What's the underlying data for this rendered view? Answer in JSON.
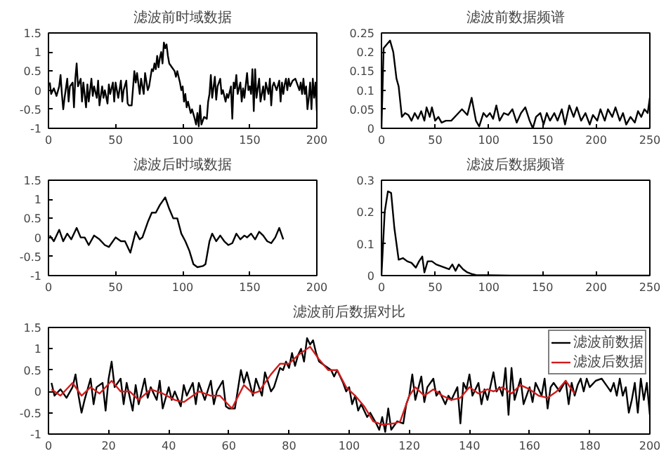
{
  "chart_data": [
    {
      "type": "line",
      "title": "滤波前时域数据",
      "xlim": [
        0,
        200
      ],
      "ylim": [
        -1,
        1.5
      ],
      "xticks": [
        0,
        50,
        100,
        150,
        200
      ],
      "yticks": [
        -1,
        -0.5,
        0,
        0.5,
        1,
        1.5
      ],
      "x": [
        1,
        2,
        4,
        6,
        8,
        9,
        10,
        11,
        12,
        14,
        15,
        16,
        18,
        19,
        20,
        21,
        22,
        24,
        25,
        26,
        28,
        29,
        30,
        32,
        33,
        34,
        36,
        37,
        38,
        40,
        41,
        42,
        44,
        45,
        46,
        48,
        49,
        50,
        52,
        54,
        55,
        56,
        58,
        59,
        60,
        62,
        64,
        65,
        66,
        68,
        69,
        70,
        71,
        72,
        74,
        75,
        77,
        78,
        79,
        80,
        81,
        82,
        83,
        84,
        85,
        86,
        87,
        88,
        89,
        90,
        92,
        94,
        95,
        96,
        98,
        99,
        100,
        101,
        102,
        103,
        104,
        106,
        107,
        109,
        110,
        111,
        112,
        113,
        114,
        116,
        118,
        119,
        120,
        121,
        122,
        124,
        125,
        126,
        128,
        129,
        130,
        132,
        133,
        134,
        136,
        137,
        138,
        139,
        140,
        141,
        143,
        144,
        145,
        146,
        148,
        149,
        150,
        151,
        152,
        153,
        154,
        155,
        157,
        158,
        160,
        161,
        162,
        164,
        165,
        166,
        167,
        168,
        170,
        172,
        173,
        174,
        175,
        176,
        177,
        178,
        179,
        180,
        182,
        184,
        186,
        187,
        188,
        189,
        190,
        191,
        192,
        193,
        194,
        195,
        196,
        197,
        198,
        199,
        200
      ],
      "series": [
        {
          "color": "#000000",
          "values": [
            0.2,
            -0.1,
            0.05,
            -0.15,
            0.1,
            0.4,
            -0.1,
            -0.5,
            -0.2,
            0.3,
            -0.3,
            0.1,
            0.2,
            -0.45,
            0.3,
            0.7,
            0.1,
            0.3,
            -0.3,
            0.2,
            -0.45,
            0.15,
            -0.3,
            0.3,
            -0.15,
            0.1,
            -0.2,
            0.25,
            -0.4,
            0.1,
            -0.2,
            0.0,
            -0.35,
            0.15,
            -0.1,
            0.2,
            -0.3,
            0.2,
            -0.2,
            0.25,
            -0.3,
            0.0,
            0.25,
            -0.35,
            -0.4,
            -0.4,
            0.5,
            0.2,
            0.45,
            -0.1,
            0.3,
            0.1,
            -0.1,
            0.45,
            0.0,
            0.1,
            0.55,
            0.5,
            0.7,
            0.55,
            0.9,
            0.6,
            0.85,
            1.0,
            0.7,
            1.25,
            1.1,
            1.2,
            0.9,
            0.7,
            0.6,
            0.5,
            0.35,
            0.5,
            0.2,
            0.0,
            0.1,
            -0.3,
            -0.1,
            -0.45,
            -0.3,
            -0.6,
            -0.5,
            -0.75,
            -0.9,
            -0.6,
            -0.95,
            -0.4,
            -0.9,
            -0.7,
            -0.75,
            -0.3,
            -0.1,
            0.4,
            -0.2,
            0.35,
            -0.25,
            0.1,
            0.3,
            -0.1,
            0.0,
            -0.3,
            -0.1,
            -0.2,
            0.1,
            -0.75,
            0.2,
            0.05,
            0.4,
            -0.1,
            0.2,
            -0.3,
            0.05,
            -0.2,
            0.45,
            0.0,
            0.1,
            -0.1,
            0.55,
            -0.55,
            0.55,
            -0.2,
            0.3,
            -0.3,
            0.1,
            -0.25,
            0.2,
            -0.1,
            0.3,
            -0.4,
            0.1,
            0.2,
            0.0,
            0.25,
            -0.3,
            0.2,
            -0.1,
            0.15,
            0.3,
            0.0,
            0.3,
            0.1,
            0.25,
            0.3,
            0.1,
            0.0,
            0.2,
            -0.1,
            0.3,
            -0.1,
            0.1,
            -0.5,
            -0.2,
            0.2,
            -0.5,
            0.3,
            -0.2,
            0.2,
            -0.55
          ]
        }
      ]
    },
    {
      "type": "line",
      "title": "滤波前数据频谱",
      "xlim": [
        0,
        250
      ],
      "ylim": [
        0,
        0.25
      ],
      "xticks": [
        0,
        50,
        100,
        150,
        200,
        250
      ],
      "yticks": [
        0,
        0.05,
        0.1,
        0.15,
        0.2,
        0.25
      ],
      "x": [
        0,
        2,
        5,
        8,
        11,
        14,
        16,
        19,
        22,
        25,
        28,
        31,
        34,
        37,
        40,
        42,
        45,
        47,
        50,
        53,
        56,
        60,
        65,
        70,
        75,
        80,
        84,
        88,
        91,
        95,
        98,
        101,
        104,
        107,
        110,
        114,
        118,
        122,
        126,
        130,
        134,
        138,
        141,
        144,
        148,
        151,
        154,
        157,
        161,
        164,
        168,
        171,
        175,
        179,
        182,
        186,
        190,
        194,
        197,
        201,
        204,
        208,
        211,
        215,
        218,
        222,
        225,
        228,
        232,
        236,
        239,
        242,
        245,
        248,
        250
      ],
      "series": [
        {
          "color": "#000000",
          "values": [
            0,
            0.21,
            0.22,
            0.23,
            0.2,
            0.13,
            0.11,
            0.03,
            0.04,
            0.035,
            0.02,
            0.04,
            0.025,
            0.045,
            0.02,
            0.055,
            0.03,
            0.055,
            0.02,
            0.03,
            0.015,
            0.02,
            0.02,
            0.035,
            0.05,
            0.035,
            0.08,
            0.02,
            0.005,
            0.04,
            0.03,
            0.04,
            0.025,
            0.06,
            0.02,
            0.04,
            0.035,
            0.05,
            0.015,
            0.04,
            0.055,
            0.02,
            0.0,
            0.03,
            0.04,
            0.01,
            0.04,
            0.02,
            0.04,
            0.02,
            0.05,
            0.01,
            0.06,
            0.03,
            0.055,
            0.02,
            0.04,
            0.01,
            0.035,
            0.02,
            0.05,
            0.02,
            0.05,
            0.03,
            0.055,
            0.02,
            0.04,
            0.01,
            0.03,
            0.015,
            0.045,
            0.03,
            0.05,
            0.04,
            0.08
          ]
        }
      ]
    },
    {
      "type": "line",
      "title": "滤波后时域数据",
      "xlim": [
        0,
        200
      ],
      "ylim": [
        -1,
        1.5
      ],
      "xticks": [
        0,
        50,
        100,
        150,
        200
      ],
      "yticks": [
        -1,
        -0.5,
        0,
        0.5,
        1,
        1.5
      ],
      "x": [
        1,
        4,
        8,
        11,
        14,
        17,
        21,
        24,
        27,
        30,
        34,
        38,
        42,
        45,
        50,
        54,
        57,
        61,
        65,
        68,
        70,
        74,
        77,
        80,
        83,
        87,
        90,
        93,
        96,
        99,
        102,
        105,
        108,
        111,
        115,
        117,
        120,
        122,
        125,
        128,
        131,
        134,
        137,
        140,
        143,
        146,
        148,
        151,
        154,
        157,
        160,
        163,
        166,
        169,
        172,
        175
      ],
      "series": [
        {
          "color": "#000000",
          "values": [
            0.05,
            -0.1,
            0.2,
            -0.1,
            0.1,
            -0.05,
            0.25,
            0.0,
            0.0,
            -0.2,
            0.05,
            -0.05,
            -0.2,
            -0.25,
            0.0,
            -0.1,
            -0.1,
            -0.4,
            0.15,
            -0.05,
            0.0,
            0.4,
            0.65,
            0.65,
            0.85,
            1.05,
            0.75,
            0.5,
            0.5,
            0.1,
            -0.1,
            -0.35,
            -0.7,
            -0.78,
            -0.75,
            -0.7,
            -0.1,
            0.1,
            -0.1,
            0.05,
            -0.1,
            -0.2,
            -0.15,
            0.1,
            -0.05,
            0.05,
            0.0,
            0.1,
            -0.05,
            0.15,
            0.05,
            -0.1,
            -0.15,
            0.0,
            0.25,
            -0.05
          ]
        }
      ]
    },
    {
      "type": "line",
      "title": "滤波后数据频谱",
      "xlim": [
        0,
        250
      ],
      "ylim": [
        0,
        0.3
      ],
      "xticks": [
        0,
        50,
        100,
        150,
        200,
        250
      ],
      "yticks": [
        0,
        0.1,
        0.2,
        0.3
      ],
      "x": [
        0,
        3,
        6,
        9,
        12,
        16,
        20,
        24,
        28,
        32,
        35,
        38,
        40,
        43,
        47,
        51,
        55,
        59,
        63,
        66,
        69,
        72,
        76,
        80,
        84,
        88,
        95,
        100,
        120,
        250
      ],
      "series": [
        {
          "color": "#000000",
          "values": [
            0,
            0.2,
            0.265,
            0.26,
            0.15,
            0.05,
            0.055,
            0.045,
            0.04,
            0.025,
            0.045,
            0.06,
            0.01,
            0.045,
            0.045,
            0.035,
            0.03,
            0.025,
            0.02,
            0.035,
            0.015,
            0.035,
            0.02,
            0.01,
            0.005,
            0.002,
            0.001,
            0.001,
            0.0,
            0.0
          ]
        }
      ]
    },
    {
      "type": "line",
      "title": "滤波前后数据对比",
      "xlim": [
        0,
        200
      ],
      "ylim": [
        -1,
        1.5
      ],
      "xticks": [
        0,
        20,
        40,
        60,
        80,
        100,
        120,
        140,
        160,
        180,
        200
      ],
      "yticks": [
        -1,
        -0.5,
        0,
        0.5,
        1,
        1.5
      ],
      "legend": "top right",
      "series": [
        {
          "name": "滤波前数据",
          "color": "#000000",
          "x": [
            1,
            2,
            4,
            6,
            8,
            9,
            10,
            11,
            12,
            14,
            15,
            16,
            18,
            19,
            20,
            21,
            22,
            24,
            25,
            26,
            28,
            29,
            30,
            32,
            33,
            34,
            36,
            37,
            38,
            40,
            41,
            42,
            44,
            45,
            46,
            48,
            49,
            50,
            52,
            54,
            55,
            56,
            58,
            59,
            60,
            62,
            64,
            65,
            66,
            68,
            69,
            70,
            71,
            72,
            74,
            75,
            77,
            78,
            79,
            80,
            81,
            82,
            83,
            84,
            85,
            86,
            87,
            88,
            89,
            90,
            92,
            94,
            95,
            96,
            98,
            99,
            100,
            101,
            102,
            103,
            104,
            106,
            107,
            109,
            110,
            111,
            112,
            113,
            114,
            116,
            118,
            119,
            120,
            121,
            122,
            124,
            125,
            126,
            128,
            129,
            130,
            132,
            133,
            134,
            136,
            137,
            138,
            139,
            140,
            141,
            143,
            144,
            145,
            146,
            148,
            149,
            150,
            151,
            152,
            153,
            154,
            155,
            157,
            158,
            160,
            161,
            162,
            164,
            165,
            166,
            167,
            168,
            170,
            172,
            173,
            174,
            175,
            176,
            177,
            178,
            179,
            180,
            182,
            184,
            186,
            187,
            188,
            189,
            190,
            191,
            192,
            193,
            194,
            195,
            196,
            197,
            198,
            199,
            200
          ],
          "values": [
            0.2,
            -0.1,
            0.05,
            -0.15,
            0.1,
            0.4,
            -0.1,
            -0.5,
            -0.2,
            0.3,
            -0.3,
            0.1,
            0.2,
            -0.45,
            0.3,
            0.7,
            0.1,
            0.3,
            -0.3,
            0.2,
            -0.45,
            0.15,
            -0.3,
            0.3,
            -0.15,
            0.1,
            -0.2,
            0.25,
            -0.4,
            0.1,
            -0.2,
            0.0,
            -0.35,
            0.15,
            -0.1,
            0.2,
            -0.3,
            0.2,
            -0.2,
            0.25,
            -0.3,
            0.0,
            0.25,
            -0.35,
            -0.4,
            -0.4,
            0.5,
            0.2,
            0.45,
            -0.1,
            0.3,
            0.1,
            -0.1,
            0.45,
            0.0,
            0.1,
            0.55,
            0.5,
            0.7,
            0.55,
            0.9,
            0.6,
            0.85,
            1.0,
            0.7,
            1.25,
            1.1,
            1.2,
            0.9,
            0.7,
            0.6,
            0.5,
            0.35,
            0.5,
            0.2,
            0.0,
            0.1,
            -0.3,
            -0.1,
            -0.45,
            -0.3,
            -0.6,
            -0.5,
            -0.75,
            -0.9,
            -0.6,
            -0.95,
            -0.4,
            -0.9,
            -0.7,
            -0.75,
            -0.3,
            -0.1,
            0.4,
            -0.2,
            0.35,
            -0.25,
            0.1,
            0.3,
            -0.1,
            0.0,
            -0.3,
            -0.1,
            -0.2,
            0.1,
            -0.75,
            0.2,
            0.05,
            0.4,
            -0.1,
            0.2,
            -0.3,
            0.05,
            -0.2,
            0.45,
            0.0,
            0.1,
            -0.1,
            0.55,
            -0.55,
            0.55,
            -0.2,
            0.3,
            -0.3,
            0.1,
            -0.25,
            0.2,
            -0.1,
            0.3,
            -0.4,
            0.1,
            0.2,
            0.0,
            0.25,
            -0.3,
            0.2,
            -0.1,
            0.15,
            0.3,
            0.0,
            0.3,
            0.1,
            0.25,
            0.3,
            0.1,
            0.0,
            0.2,
            -0.1,
            0.3,
            -0.1,
            0.1,
            -0.5,
            -0.2,
            0.2,
            -0.5,
            0.3,
            -0.2,
            0.2,
            -0.55
          ]
        },
        {
          "name": "滤波后数据",
          "color": "#d01c1c",
          "x": [
            1,
            4,
            8,
            11,
            14,
            17,
            21,
            24,
            27,
            30,
            34,
            38,
            42,
            45,
            50,
            54,
            57,
            61,
            65,
            68,
            70,
            74,
            77,
            80,
            83,
            87,
            90,
            93,
            96,
            99,
            102,
            105,
            108,
            111,
            115,
            117,
            120,
            122,
            125,
            128,
            131,
            134,
            137,
            140,
            143,
            146,
            148,
            151,
            154,
            157,
            160,
            163,
            166,
            169,
            172,
            175
          ],
          "values": [
            0.05,
            -0.1,
            0.2,
            -0.1,
            0.1,
            -0.05,
            0.25,
            0.0,
            0.0,
            -0.2,
            0.05,
            -0.05,
            -0.2,
            -0.25,
            0.0,
            -0.1,
            -0.1,
            -0.4,
            0.15,
            -0.05,
            0.0,
            0.4,
            0.65,
            0.65,
            0.85,
            1.05,
            0.75,
            0.5,
            0.5,
            0.1,
            -0.1,
            -0.35,
            -0.7,
            -0.78,
            -0.75,
            -0.7,
            -0.1,
            0.1,
            -0.1,
            0.05,
            -0.1,
            -0.2,
            -0.15,
            0.1,
            -0.05,
            0.05,
            0.0,
            0.1,
            -0.05,
            0.15,
            0.05,
            -0.1,
            -0.15,
            0.0,
            0.25,
            -0.05
          ]
        }
      ]
    }
  ]
}
